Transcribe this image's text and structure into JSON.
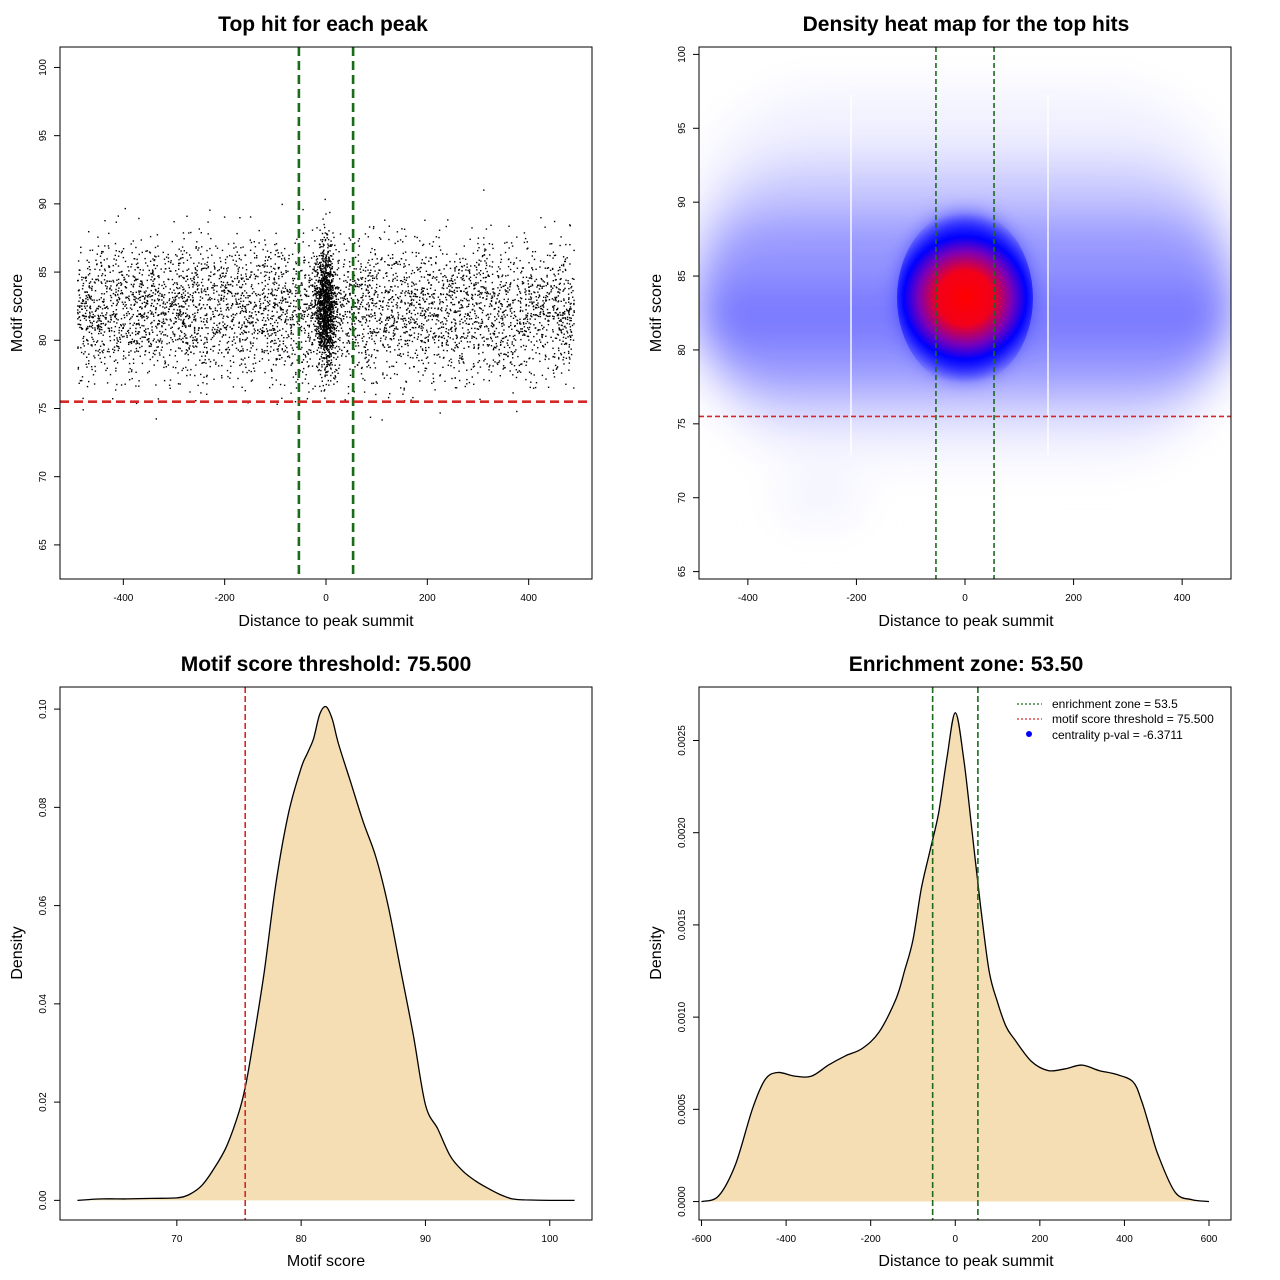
{
  "colors": {
    "threshold_line": "#d62728",
    "zone_line": "#1a6b1a",
    "fill": "#f5deb3",
    "point": "#000000",
    "legend_point": "#0000ff"
  },
  "chart_data": [
    {
      "id": "scatter",
      "type": "scatter",
      "title": "Top hit for each peak",
      "xlabel": "Distance to peak summit",
      "ylabel": "Motif score",
      "xlim": [
        -525,
        525
      ],
      "ylim": [
        62.5,
        101.5
      ],
      "xticks": [
        -400,
        -200,
        0,
        200,
        400
      ],
      "yticks": [
        65,
        70,
        75,
        80,
        85,
        90,
        95,
        100
      ],
      "grid": false,
      "point_count": 6000,
      "point_distribution": {
        "x_range": [
          -490,
          490
        ],
        "central_fraction": 0.2,
        "central_x_sd": 14,
        "score_mean": 82.3,
        "score_sd": 3.6,
        "score_range": [
          64,
          100
        ]
      },
      "vlines": [
        -53.5,
        53.5
      ],
      "hline": 75.5
    },
    {
      "id": "heatmap",
      "type": "heatmap",
      "title": "Density heat map for the top hits",
      "xlabel": "Distance to peak summit",
      "ylabel": "Motif score",
      "xlim": [
        -490,
        490
      ],
      "ylim": [
        64.5,
        100.5
      ],
      "xticks": [
        -400,
        -200,
        0,
        200,
        400
      ],
      "yticks": [
        65,
        70,
        75,
        80,
        85,
        90,
        95,
        100
      ],
      "color_scale": [
        "white",
        "blue",
        "red"
      ],
      "density_peak": {
        "x": 0,
        "y": 83
      },
      "vlines": [
        -53.5,
        53.5
      ],
      "hline": 75.5
    },
    {
      "id": "score-density",
      "type": "area",
      "title": "Motif score threshold: 75.500",
      "xlabel": "Motif score",
      "ylabel": "Density",
      "xlim": [
        60.6,
        103.4
      ],
      "ylim": [
        -0.004,
        0.1045
      ],
      "xticks": [
        70,
        80,
        90,
        100
      ],
      "yticks": [
        0.0,
        0.02,
        0.04,
        0.06,
        0.08,
        0.1
      ],
      "ytick_labels": [
        "0.00",
        "0.02",
        "0.04",
        "0.06",
        "0.08",
        "0.10"
      ],
      "x": [
        62,
        64,
        66,
        68,
        70,
        71,
        72,
        73,
        74,
        75,
        75.5,
        76,
        77,
        78,
        79,
        80,
        80.5,
        81,
        81.5,
        82,
        82.5,
        83,
        84,
        85,
        86,
        87,
        88,
        89,
        90,
        91,
        92,
        93,
        94,
        95,
        96,
        97,
        98,
        100,
        102
      ],
      "y": [
        0,
        0.0003,
        0.0003,
        0.0004,
        0.0005,
        0.0012,
        0.003,
        0.0065,
        0.011,
        0.018,
        0.023,
        0.03,
        0.046,
        0.065,
        0.079,
        0.088,
        0.091,
        0.094,
        0.099,
        0.1005,
        0.098,
        0.093,
        0.085,
        0.077,
        0.07,
        0.06,
        0.047,
        0.034,
        0.0195,
        0.0145,
        0.009,
        0.006,
        0.004,
        0.0025,
        0.0012,
        0.0003,
        0.0001,
        0,
        0
      ],
      "vline": 75.5
    },
    {
      "id": "distance-density",
      "type": "area",
      "title": "Enrichment zone: 53.50",
      "xlabel": "Distance to peak summit",
      "ylabel": "Density",
      "xlim": [
        -606,
        652
      ],
      "ylim": [
        -0.0001,
        0.00279
      ],
      "xticks": [
        -600,
        -400,
        -200,
        0,
        200,
        400,
        600
      ],
      "yticks": [
        0,
        0.0005,
        0.001,
        0.0015,
        0.002,
        0.0025
      ],
      "ytick_labels": [
        "0.0000",
        "0.0005",
        "0.0010",
        "0.0015",
        "0.0020",
        "0.0025"
      ],
      "x": [
        -600,
        -560,
        -520,
        -480,
        -450,
        -420,
        -380,
        -340,
        -300,
        -260,
        -220,
        -180,
        -140,
        -120,
        -100,
        -80,
        -60,
        -40,
        -20,
        0,
        20,
        40,
        60,
        80,
        100,
        120,
        140,
        180,
        220,
        260,
        300,
        340,
        380,
        420,
        440,
        460,
        480,
        520,
        560,
        600
      ],
      "y": [
        0,
        3e-05,
        0.0002,
        0.0005,
        0.00066,
        0.0007,
        0.00068,
        0.00068,
        0.00074,
        0.00079,
        0.00083,
        0.00092,
        0.0011,
        0.00125,
        0.00142,
        0.0017,
        0.0019,
        0.0021,
        0.0024,
        0.00265,
        0.0024,
        0.002,
        0.0016,
        0.00125,
        0.00108,
        0.00095,
        0.00088,
        0.00076,
        0.00071,
        0.00072,
        0.00074,
        0.00071,
        0.00069,
        0.00065,
        0.00055,
        0.0004,
        0.00025,
        5e-05,
        1e-05,
        0
      ],
      "vlines": [
        -53.5,
        53.5
      ],
      "legend_position": "top-right",
      "legend": [
        {
          "label": "enrichment zone = 53.5",
          "style": "dotted",
          "color": "#1a6b1a"
        },
        {
          "label": "motif score threshold = 75.500",
          "style": "dotted",
          "color": "#d62728"
        },
        {
          "label": "centrality p-val = -6.3711",
          "style": "point",
          "color": "#0000ff"
        }
      ]
    }
  ]
}
